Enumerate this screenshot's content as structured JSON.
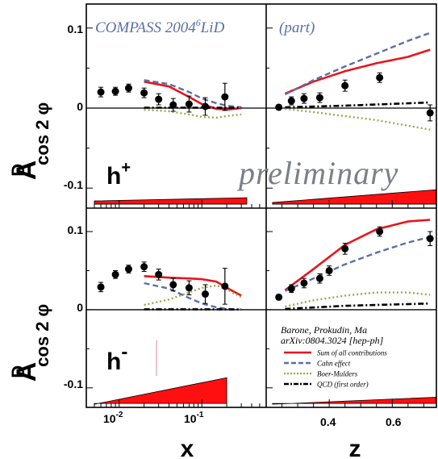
{
  "header": {
    "experiment": "COMPASS 2004",
    "target_sup": "6",
    "target": "LiD",
    "note": "(part)",
    "watermark": "preliminary"
  },
  "ylabel": {
    "A": "A",
    "sup": "D",
    "sub": "cos 2 φ"
  },
  "hadron": {
    "plus": {
      "h": "h",
      "sign": "+"
    },
    "minus": {
      "h": "h",
      "sign": "-"
    }
  },
  "xlabel": {
    "left": "x",
    "right": "z"
  },
  "y_ticks": [
    "0.1",
    "0",
    "-0.1"
  ],
  "x_ticks_left": [
    {
      "base": "10",
      "exp": "-2",
      "value": 0.01
    },
    {
      "base": "10",
      "exp": "-1",
      "value": 0.1
    }
  ],
  "x_ticks_right": [
    "0.4",
    "0.6"
  ],
  "legend": {
    "ref_line1": "Barone, Prokudin, Ma",
    "ref_line2": "arXiv:0804.3024 [hep-ph]",
    "items": [
      {
        "label": "Sum of all contributions",
        "color": "#e8141b",
        "style": "solid"
      },
      {
        "label": "Cahn effect",
        "color": "#5a6fa8",
        "style": "dashed"
      },
      {
        "label": "Boer-Mulders",
        "color": "#9aa84a",
        "style": "dotted"
      },
      {
        "label": "QCD (first order)",
        "color": "#000000",
        "style": "dashdot"
      }
    ]
  },
  "chart_data": [
    {
      "type": "scatter",
      "panel": "h+ vs x",
      "xscale": "log",
      "xlim": [
        0.004,
        0.6
      ],
      "ylim": [
        -0.125,
        0.13
      ],
      "points": [
        {
          "x": 0.006,
          "y": 0.02,
          "err": 0.006
        },
        {
          "x": 0.009,
          "y": 0.021,
          "err": 0.005
        },
        {
          "x": 0.013,
          "y": 0.025,
          "err": 0.005
        },
        {
          "x": 0.02,
          "y": 0.019,
          "err": 0.006
        },
        {
          "x": 0.03,
          "y": 0.011,
          "err": 0.007
        },
        {
          "x": 0.045,
          "y": 0.004,
          "err": 0.008
        },
        {
          "x": 0.07,
          "y": 0.005,
          "err": 0.01
        },
        {
          "x": 0.11,
          "y": 0.002,
          "err": 0.011
        },
        {
          "x": 0.19,
          "y": 0.014,
          "err": 0.017
        }
      ],
      "series": [
        {
          "name": "Sum of all contributions",
          "x": [
            0.02,
            0.04,
            0.07,
            0.1,
            0.15,
            0.2,
            0.3
          ],
          "y": [
            0.033,
            0.027,
            0.014,
            0.005,
            -0.001,
            -0.002,
            0
          ]
        },
        {
          "name": "Cahn effect",
          "x": [
            0.02,
            0.04,
            0.07,
            0.1,
            0.15,
            0.2,
            0.3
          ],
          "y": [
            0.035,
            0.03,
            0.02,
            0.012,
            0.006,
            0.003,
            0.001
          ]
        },
        {
          "name": "Boer-Mulders",
          "x": [
            0.02,
            0.04,
            0.07,
            0.1,
            0.15,
            0.2,
            0.3
          ],
          "y": [
            -0.002,
            -0.004,
            -0.008,
            -0.011,
            -0.012,
            -0.01,
            -0.008
          ]
        },
        {
          "name": "QCD (first order)",
          "x": [
            0.02,
            0.1,
            0.3
          ],
          "y": [
            0.0005,
            0.0005,
            0.0003
          ]
        }
      ],
      "systematic_band": {
        "x": [
          0.005,
          0.35
        ],
        "y": [
          -0.116,
          -0.112
        ]
      }
    },
    {
      "type": "scatter",
      "panel": "h+ vs z",
      "xlim": [
        0.2,
        0.74
      ],
      "ylim": [
        -0.125,
        0.13
      ],
      "points": [
        {
          "x": 0.24,
          "y": 0.001,
          "err": 0.003
        },
        {
          "x": 0.28,
          "y": 0.009,
          "err": 0.005
        },
        {
          "x": 0.32,
          "y": 0.012,
          "err": 0.006
        },
        {
          "x": 0.37,
          "y": 0.013,
          "err": 0.006
        },
        {
          "x": 0.45,
          "y": 0.028,
          "err": 0.007
        },
        {
          "x": 0.56,
          "y": 0.038,
          "err": 0.006
        },
        {
          "x": 0.72,
          "y": -0.006,
          "err": 0.01
        }
      ],
      "series": [
        {
          "name": "Sum of all contributions",
          "x": [
            0.26,
            0.35,
            0.45,
            0.55,
            0.65,
            0.72
          ],
          "y": [
            0.018,
            0.033,
            0.046,
            0.056,
            0.064,
            0.073
          ]
        },
        {
          "name": "Cahn effect",
          "x": [
            0.26,
            0.35,
            0.45,
            0.55,
            0.65,
            0.72
          ],
          "y": [
            0.017,
            0.035,
            0.052,
            0.068,
            0.084,
            0.094
          ]
        },
        {
          "name": "Boer-Mulders",
          "x": [
            0.26,
            0.35,
            0.45,
            0.55,
            0.65,
            0.72
          ],
          "y": [
            -0.001,
            -0.005,
            -0.01,
            -0.015,
            -0.022,
            -0.027
          ]
        },
        {
          "name": "QCD (first order)",
          "x": [
            0.26,
            0.45,
            0.72
          ],
          "y": [
            0.001,
            0.003,
            0.007
          ]
        }
      ],
      "systematic_band": {
        "x": [
          0.22,
          0.74
        ],
        "y": [
          -0.118,
          -0.102
        ]
      }
    },
    {
      "type": "scatter",
      "panel": "h- vs x",
      "xscale": "log",
      "xlim": [
        0.004,
        0.6
      ],
      "ylim": [
        -0.125,
        0.13
      ],
      "points": [
        {
          "x": 0.006,
          "y": 0.029,
          "err": 0.006
        },
        {
          "x": 0.009,
          "y": 0.045,
          "err": 0.005
        },
        {
          "x": 0.013,
          "y": 0.052,
          "err": 0.005
        },
        {
          "x": 0.02,
          "y": 0.055,
          "err": 0.006
        },
        {
          "x": 0.03,
          "y": 0.045,
          "err": 0.007
        },
        {
          "x": 0.045,
          "y": 0.032,
          "err": 0.008
        },
        {
          "x": 0.07,
          "y": 0.028,
          "err": 0.009
        },
        {
          "x": 0.11,
          "y": 0.02,
          "err": 0.012
        },
        {
          "x": 0.19,
          "y": 0.03,
          "err": 0.023
        }
      ],
      "series": [
        {
          "name": "Sum of all contributions",
          "x": [
            0.02,
            0.04,
            0.07,
            0.1,
            0.15,
            0.2,
            0.3
          ],
          "y": [
            0.043,
            0.041,
            0.04,
            0.039,
            0.036,
            0.028,
            0.018
          ]
        },
        {
          "name": "Cahn effect",
          "x": [
            0.02,
            0.04,
            0.07,
            0.1,
            0.15,
            0.2,
            0.3
          ],
          "y": [
            0.034,
            0.027,
            0.015,
            0.008,
            0.003,
            0.001,
            0
          ]
        },
        {
          "name": "Boer-Mulders",
          "x": [
            0.02,
            0.04,
            0.07,
            0.1,
            0.15,
            0.2,
            0.3
          ],
          "y": [
            0.006,
            0.013,
            0.022,
            0.028,
            0.031,
            0.026,
            0.016
          ]
        },
        {
          "name": "QCD (first order)",
          "x": [
            0.02,
            0.1,
            0.3
          ],
          "y": [
            0.0005,
            0.0005,
            0.0003
          ]
        }
      ],
      "systematic_band": {
        "x": [
          0.005,
          0.2
        ],
        "y": [
          -0.121,
          -0.087
        ]
      }
    },
    {
      "type": "scatter",
      "panel": "h- vs z",
      "xlim": [
        0.2,
        0.74
      ],
      "ylim": [
        -0.125,
        0.13
      ],
      "points": [
        {
          "x": 0.24,
          "y": 0.016,
          "err": 0.003
        },
        {
          "x": 0.28,
          "y": 0.027,
          "err": 0.005
        },
        {
          "x": 0.32,
          "y": 0.034,
          "err": 0.006
        },
        {
          "x": 0.37,
          "y": 0.04,
          "err": 0.006
        },
        {
          "x": 0.4,
          "y": 0.05,
          "err": 0.006
        },
        {
          "x": 0.45,
          "y": 0.078,
          "err": 0.007
        },
        {
          "x": 0.56,
          "y": 0.1,
          "err": 0.006
        },
        {
          "x": 0.72,
          "y": 0.091,
          "err": 0.009
        }
      ],
      "series": [
        {
          "name": "Sum of all contributions",
          "x": [
            0.26,
            0.35,
            0.45,
            0.55,
            0.65,
            0.72
          ],
          "y": [
            0.025,
            0.052,
            0.083,
            0.103,
            0.113,
            0.115
          ]
        },
        {
          "name": "Cahn effect",
          "x": [
            0.26,
            0.35,
            0.45,
            0.55,
            0.65,
            0.72
          ],
          "y": [
            0.024,
            0.04,
            0.058,
            0.073,
            0.086,
            0.093
          ]
        },
        {
          "name": "Boer-Mulders",
          "x": [
            0.26,
            0.35,
            0.45,
            0.55,
            0.65,
            0.72
          ],
          "y": [
            0.004,
            0.012,
            0.018,
            0.022,
            0.022,
            0.019
          ]
        },
        {
          "name": "QCD (first order)",
          "x": [
            0.26,
            0.45,
            0.72
          ],
          "y": [
            0.001,
            0.005,
            0.008
          ]
        }
      ],
      "systematic_band": {
        "x": [
          0.22,
          0.74
        ],
        "y": [
          -0.121,
          -0.112
        ]
      }
    }
  ]
}
